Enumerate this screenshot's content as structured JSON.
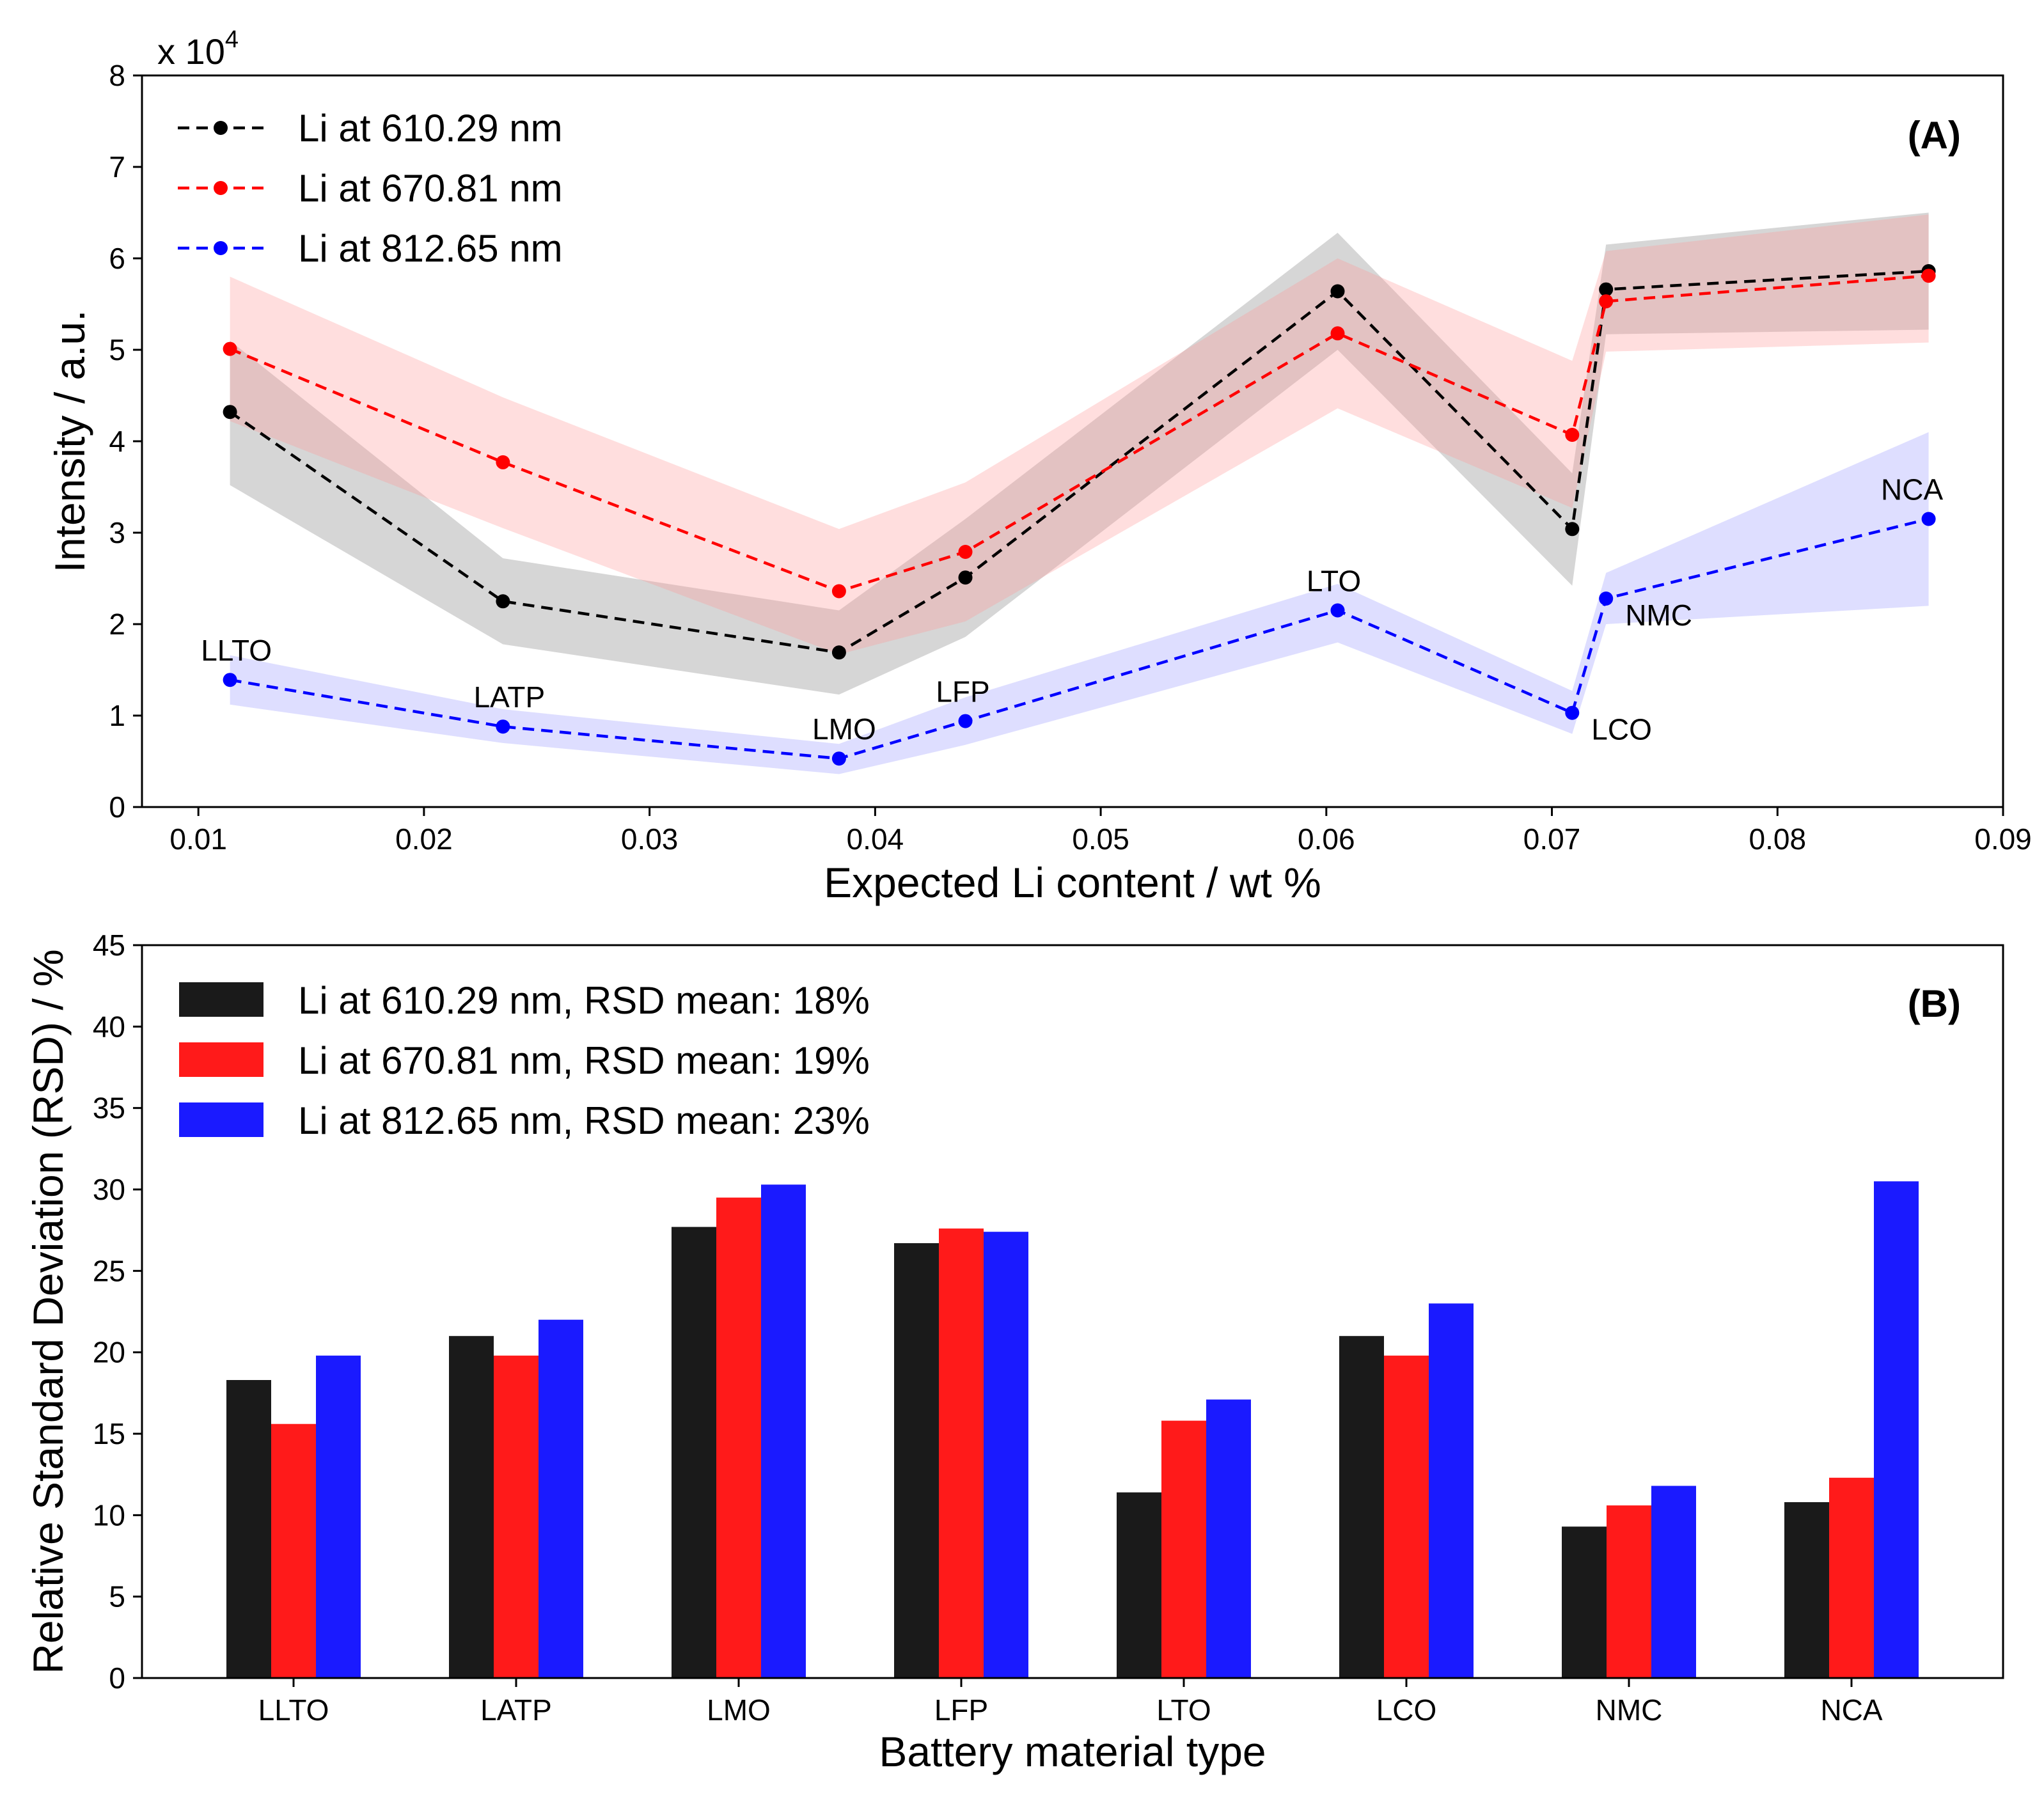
{
  "chart_data": [
    {
      "panel": "(A)",
      "type": "line",
      "xlabel": "Expected Li content / wt %",
      "ylabel": "Intensity / a.u.",
      "y_multiplier_label": "x 10",
      "y_multiplier_exponent": "4",
      "xlim": [
        0.0075,
        0.09
      ],
      "ylim": [
        0,
        8
      ],
      "xticks": [
        0.01,
        0.02,
        0.03,
        0.04,
        0.05,
        0.06,
        0.07,
        0.08,
        0.09
      ],
      "xtick_labels": [
        "0.01",
        "0.02",
        "0.03",
        "0.04",
        "0.05",
        "0.06",
        "0.07",
        "0.08",
        "0.09"
      ],
      "yticks": [
        0,
        1,
        2,
        3,
        4,
        5,
        6,
        7,
        8
      ],
      "ytick_labels": [
        "0",
        "1",
        "2",
        "3",
        "4",
        "5",
        "6",
        "7",
        "8"
      ],
      "x": [
        0.0114,
        0.0235,
        0.0384,
        0.044,
        0.0605,
        0.0709,
        0.0724,
        0.0867
      ],
      "point_labels": [
        "LLTO",
        "LATP",
        "LMO",
        "LFP",
        "LTO",
        "LCO",
        "NMC",
        "NCA"
      ],
      "legend_position": "top-left",
      "series": [
        {
          "name": "Li at 610.29 nm",
          "color": "#000000",
          "band_color": "#808080",
          "values": [
            4.32,
            2.25,
            1.69,
            2.51,
            5.64,
            3.04,
            5.66,
            5.86
          ],
          "upper": [
            5.1,
            2.72,
            2.15,
            3.15,
            6.28,
            3.65,
            6.15,
            6.5
          ],
          "lower": [
            3.52,
            1.78,
            1.23,
            1.86,
            5.0,
            2.42,
            5.17,
            5.22
          ]
        },
        {
          "name": "Li at 670.81 nm",
          "color": "#ff0000",
          "band_color": "#ff9999",
          "values": [
            5.01,
            3.77,
            2.36,
            2.79,
            5.18,
            4.07,
            5.53,
            5.81
          ],
          "upper": [
            5.8,
            4.48,
            3.04,
            3.55,
            6.0,
            4.88,
            6.08,
            6.48
          ],
          "lower": [
            4.22,
            3.05,
            1.67,
            2.03,
            4.36,
            3.27,
            4.98,
            5.08
          ]
        },
        {
          "name": "Li at 812.65 nm",
          "color": "#0000ff",
          "band_color": "#9999ff",
          "values": [
            1.39,
            0.88,
            0.53,
            0.94,
            2.15,
            1.03,
            2.28,
            3.15
          ],
          "upper": [
            1.66,
            1.07,
            0.69,
            1.2,
            2.44,
            1.27,
            2.56,
            4.1
          ],
          "lower": [
            1.12,
            0.7,
            0.36,
            0.68,
            1.8,
            0.8,
            2.0,
            2.2
          ]
        }
      ]
    },
    {
      "panel": "(B)",
      "type": "bar",
      "xlabel": "Battery material type",
      "ylabel": "Relative Standard Deviation (RSD) / %",
      "ylim": [
        0,
        45
      ],
      "yticks": [
        0,
        5,
        10,
        15,
        20,
        25,
        30,
        35,
        40,
        45
      ],
      "ytick_labels": [
        "0",
        "5",
        "10",
        "15",
        "20",
        "25",
        "30",
        "35",
        "40",
        "45"
      ],
      "categories": [
        "LLTO",
        "LATP",
        "LMO",
        "LFP",
        "LTO",
        "LCO",
        "NMC",
        "NCA"
      ],
      "legend_position": "top-left",
      "series": [
        {
          "name": "Li at 610.29 nm, RSD mean: 18%",
          "color": "#1a1a1a",
          "values": [
            18.3,
            21.0,
            27.7,
            26.7,
            11.4,
            21.0,
            9.3,
            10.8
          ]
        },
        {
          "name": "Li at 670.81 nm, RSD mean: 19%",
          "color": "#ff1a1a",
          "values": [
            15.6,
            19.8,
            29.5,
            27.6,
            15.8,
            19.8,
            10.6,
            12.3
          ]
        },
        {
          "name": "Li at 812.65 nm, RSD mean: 23%",
          "color": "#1a1aff",
          "values": [
            19.8,
            22.0,
            30.3,
            27.4,
            17.1,
            23.0,
            11.8,
            30.5
          ]
        }
      ]
    }
  ]
}
